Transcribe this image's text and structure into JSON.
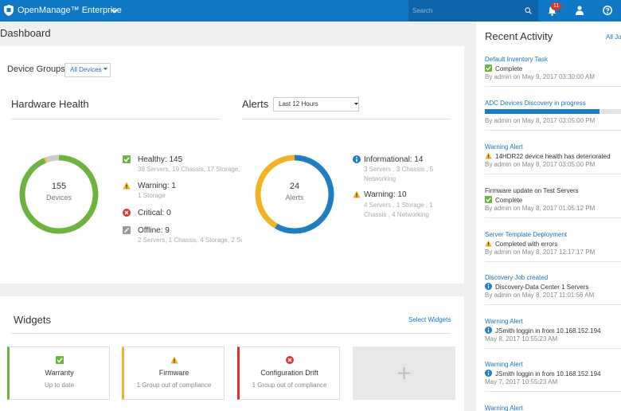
{
  "header": {
    "product": "OpenManage™ Enterprise",
    "search_placeholder": "Search",
    "notification_count": 11
  },
  "page_title": "Dashboard",
  "device_groups": {
    "label": "Device Groups",
    "selected": "All Devices"
  },
  "hardware_health": {
    "title": "Hardware Health",
    "total": 155,
    "unit": "Devices",
    "items": [
      {
        "label": "Healthy: 145",
        "count": 145,
        "detail": "38 Servers, 19 Chassis, 17 Storage, 42",
        "color": "#6cb33f"
      },
      {
        "label": "Warning: 1",
        "count": 1,
        "detail": "1 Storage",
        "color": "#f0b323"
      },
      {
        "label": "Critical: 0",
        "count": 0,
        "color": "#d9322f"
      },
      {
        "label": "Offline: 9",
        "count": 9,
        "detail": "2 Servers, 1 Chassis, 4 Storage, 2 Swit",
        "color": "#cccccc"
      }
    ]
  },
  "alerts": {
    "title": "Alerts",
    "range": "Last 12 Hours",
    "total": 24,
    "unit": "Alerts",
    "items": [
      {
        "label": "Informational: 14",
        "count": 14,
        "detail": "3 Servers , 3 Chassis , 5 Networking",
        "color": "#1f7dc1"
      },
      {
        "label": "Warning: 10",
        "count": 10,
        "detail": "4 Servers , 1 Storage , 1 Chassis , 4 Networking",
        "color": "#f0b323"
      }
    ]
  },
  "widgets": {
    "title": "Widgets",
    "action": "Select Widgets",
    "cards": [
      {
        "title": "Warranty",
        "status": "Up to date"
      },
      {
        "title": "Firmware",
        "status": "1 Group out of compliance"
      },
      {
        "title": "Configuration Drift",
        "status": "1 Group out of compliance"
      }
    ]
  },
  "recent_activity": {
    "title": "Recent Activity",
    "link": "All Jobs",
    "items": [
      {
        "title": "Default Inventory Task",
        "status": "Complete",
        "meta": "By admin on May 9, 2017 03:30:00 AM"
      },
      {
        "title": "ADC Devices Discovery in progress",
        "progress": 82,
        "meta": "By admin on May 8, 2017 03:05:00 PM"
      },
      {
        "title": "Warning Alert",
        "status": "14HDR22 device health has deteriorated",
        "meta": "By admin on May 8, 2017 03:05:00 PM"
      },
      {
        "title": "Firmware update on Test Servers",
        "status": "Complete",
        "meta": "By admin on May 8, 2017 01:05:12 PM"
      },
      {
        "title": "Server Template Deployment",
        "status": "Completed with errors",
        "meta": "By admin on May 8, 2017 12:17:17 PM"
      },
      {
        "title": "Discovery Job created",
        "status": "Discovery-Data Center 1 Servers",
        "meta": "By admin on May 8, 2017 11:01:56 AM"
      },
      {
        "title": "Warning Alert",
        "status": "JSmith loggin in from 10.168.152.194",
        "meta": "May 8, 2017 10:55:23 AM"
      },
      {
        "title": "Warning Alert",
        "status": "JSmith loggin in from 10.168.152.194",
        "meta": "May 7, 2017 10:55:23 AM"
      },
      {
        "title": "Warning Alert"
      }
    ]
  }
}
